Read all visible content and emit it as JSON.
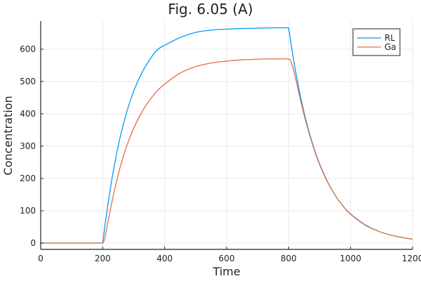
{
  "chart_data": {
    "type": "line",
    "title": "Fig. 6.05 (A)",
    "xlabel": "Time",
    "ylabel": "Concentration",
    "xlim": [
      0,
      1200
    ],
    "ylim": [
      -20,
      685
    ],
    "xticks": [
      0,
      200,
      400,
      600,
      800,
      1000,
      1200
    ],
    "yticks": [
      0,
      100,
      200,
      300,
      400,
      500,
      600
    ],
    "grid": true,
    "legend_position": "top-right",
    "series": [
      {
        "name": "RL",
        "color": "#009AFA",
        "x": [
          0,
          200,
          210,
          220,
          230,
          240,
          250,
          260,
          280,
          300,
          325,
          350,
          375,
          400,
          450,
          500,
          550,
          600,
          650,
          700,
          750,
          800,
          810,
          820,
          840,
          860,
          880,
          900,
          925,
          950,
          975,
          1000,
          1050,
          1100,
          1150,
          1200
        ],
        "values": [
          0,
          0,
          73,
          139,
          199,
          252,
          300,
          342,
          413,
          470,
          524,
          565,
          597,
          612,
          636,
          652,
          659,
          662,
          664,
          665,
          666,
          666,
          603,
          545,
          446,
          365,
          299,
          245,
          191,
          148,
          115,
          90,
          55,
          33,
          20,
          12
        ]
      },
      {
        "name": "Ga",
        "color": "#E26F46",
        "x": [
          0,
          200,
          205,
          210,
          220,
          230,
          240,
          250,
          260,
          280,
          300,
          325,
          350,
          375,
          400,
          450,
          500,
          550,
          600,
          650,
          700,
          750,
          800,
          805,
          810,
          820,
          840,
          860,
          880,
          900,
          925,
          950,
          975,
          1000,
          1050,
          1100,
          1150,
          1200
        ],
        "values": [
          0,
          0,
          8,
          30,
          80,
          128,
          172,
          211,
          247,
          307,
          355,
          403,
          440,
          470,
          492,
          526,
          546,
          557,
          563,
          567,
          569,
          570,
          570,
          566,
          555,
          520,
          436,
          360,
          296,
          243,
          190,
          148,
          115,
          89,
          54,
          33,
          20,
          12
        ]
      }
    ]
  }
}
